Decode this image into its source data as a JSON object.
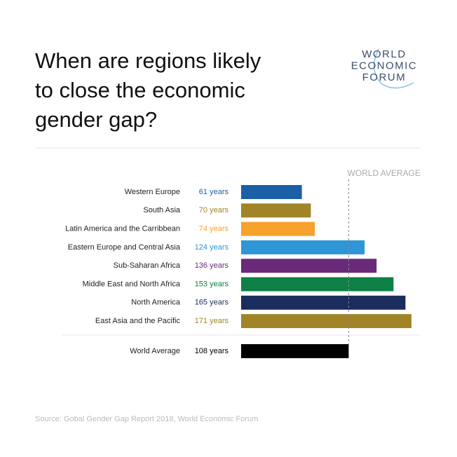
{
  "chart_data": {
    "type": "bar",
    "orientation": "horizontal",
    "title": "When are regions likely to close the economic gender gap?",
    "categories": [
      "Western Europe",
      "South Asia",
      "Latin America and the Carribbean",
      "Eastern Europe and Central Asia",
      "Sub-Saharan Africa",
      "Middle East and North Africa",
      "North America",
      "East Asia and the Pacific"
    ],
    "values": [
      61,
      70,
      74,
      124,
      136,
      153,
      165,
      171
    ],
    "value_labels": [
      "61 years",
      "70 years",
      "74 years",
      "124 years",
      "136 years",
      "153 years",
      "165 years",
      "171 years"
    ],
    "colors": [
      "#1b5fa6",
      "#a08427",
      "#f6a22d",
      "#2e95d6",
      "#6a2a7a",
      "#0e8046",
      "#1b2d5c",
      "#a08427"
    ],
    "average": {
      "label": "World Average",
      "value": 108,
      "value_label": "108 years",
      "color": "#000000"
    },
    "average_annotation": "WORLD AVERAGE",
    "source": "Source: Gobal Gender Gap Report 2018, World Economic Forum"
  },
  "logo": [
    "WORLD",
    "ECONOMIC",
    "FORUM"
  ]
}
